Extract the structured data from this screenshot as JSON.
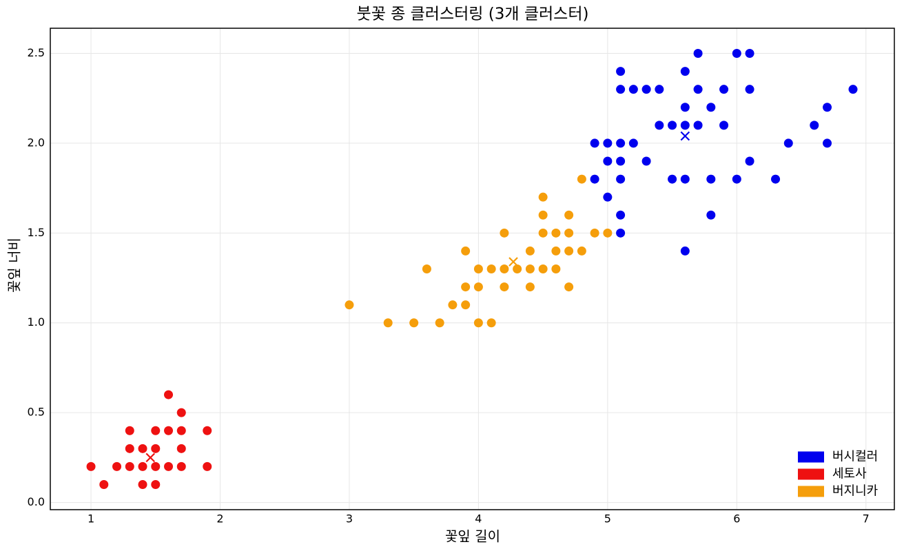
{
  "chart_data": {
    "type": "scatter",
    "title": "붓꽃 종 클러스터링 (3개 클러스터)",
    "x_label": "꽃잎 길이",
    "y_label": "꽃잎 너비",
    "xlim": [
      0.685,
      7.22
    ],
    "ylim": [
      -0.04,
      2.64
    ],
    "xticks": [
      1,
      2,
      3,
      4,
      5,
      6,
      7
    ],
    "yticks": [
      {
        "value": 0,
        "label": "0.0"
      },
      0.5,
      {
        "value": 1,
        "label": "1.0"
      },
      1.5,
      {
        "value": 2,
        "label": "2.0"
      },
      2.5
    ],
    "grid": true,
    "legend": "lower right",
    "series": [
      {
        "name": "버시컬러",
        "color": "#0000ee",
        "x": [
          4.9,
          4.9,
          5.0,
          5.0,
          5.0,
          5.1,
          5.1,
          5.1,
          5.1,
          5.1,
          5.1,
          5.1,
          5.2,
          5.2,
          5.3,
          5.3,
          5.4,
          5.4,
          5.5,
          5.5,
          5.6,
          5.6,
          5.6,
          5.6,
          5.6,
          5.7,
          5.7,
          5.7,
          5.8,
          5.8,
          5.8,
          5.9,
          5.9,
          6.0,
          6.0,
          6.1,
          6.1,
          6.1,
          6.3,
          6.4,
          6.6,
          6.7,
          6.7,
          6.9
        ],
        "y": [
          1.8,
          2.0,
          1.7,
          1.9,
          2.0,
          1.5,
          1.6,
          1.8,
          1.9,
          2.0,
          2.3,
          2.4,
          2.0,
          2.3,
          1.9,
          2.3,
          2.1,
          2.3,
          1.8,
          2.1,
          1.4,
          1.8,
          2.1,
          2.2,
          2.4,
          2.1,
          2.3,
          2.5,
          1.6,
          1.8,
          2.2,
          2.1,
          2.3,
          1.8,
          2.5,
          1.9,
          2.3,
          2.5,
          1.8,
          2.0,
          2.1,
          2.0,
          2.2,
          2.3
        ],
        "centroid": {
          "x": 5.6,
          "y": 2.04
        }
      },
      {
        "name": "세토사",
        "color": "#ee1111",
        "x": [
          1.0,
          1.1,
          1.2,
          1.3,
          1.3,
          1.3,
          1.4,
          1.4,
          1.4,
          1.5,
          1.5,
          1.5,
          1.5,
          1.6,
          1.6,
          1.6,
          1.7,
          1.7,
          1.7,
          1.7,
          1.9,
          1.9
        ],
        "y": [
          0.2,
          0.1,
          0.2,
          0.2,
          0.3,
          0.4,
          0.1,
          0.2,
          0.3,
          0.1,
          0.2,
          0.3,
          0.4,
          0.2,
          0.4,
          0.6,
          0.2,
          0.3,
          0.4,
          0.5,
          0.2,
          0.4
        ],
        "centroid": {
          "x": 1.46,
          "y": 0.25
        }
      },
      {
        "name": "버지니카",
        "color": "#f59e0b",
        "x": [
          3.0,
          3.3,
          3.5,
          3.6,
          3.7,
          3.8,
          3.9,
          3.9,
          3.9,
          4.0,
          4.0,
          4.0,
          4.1,
          4.1,
          4.2,
          4.2,
          4.2,
          4.3,
          4.4,
          4.4,
          4.4,
          4.5,
          4.5,
          4.5,
          4.5,
          4.6,
          4.6,
          4.6,
          4.7,
          4.7,
          4.7,
          4.7,
          4.8,
          4.8,
          4.9,
          5.0
        ],
        "y": [
          1.1,
          1.0,
          1.0,
          1.3,
          1.0,
          1.1,
          1.1,
          1.2,
          1.4,
          1.0,
          1.2,
          1.3,
          1.0,
          1.3,
          1.2,
          1.3,
          1.5,
          1.3,
          1.2,
          1.3,
          1.4,
          1.3,
          1.5,
          1.6,
          1.7,
          1.3,
          1.4,
          1.5,
          1.2,
          1.4,
          1.5,
          1.6,
          1.4,
          1.8,
          1.5,
          1.5
        ],
        "centroid": {
          "x": 4.27,
          "y": 1.34
        }
      }
    ]
  }
}
